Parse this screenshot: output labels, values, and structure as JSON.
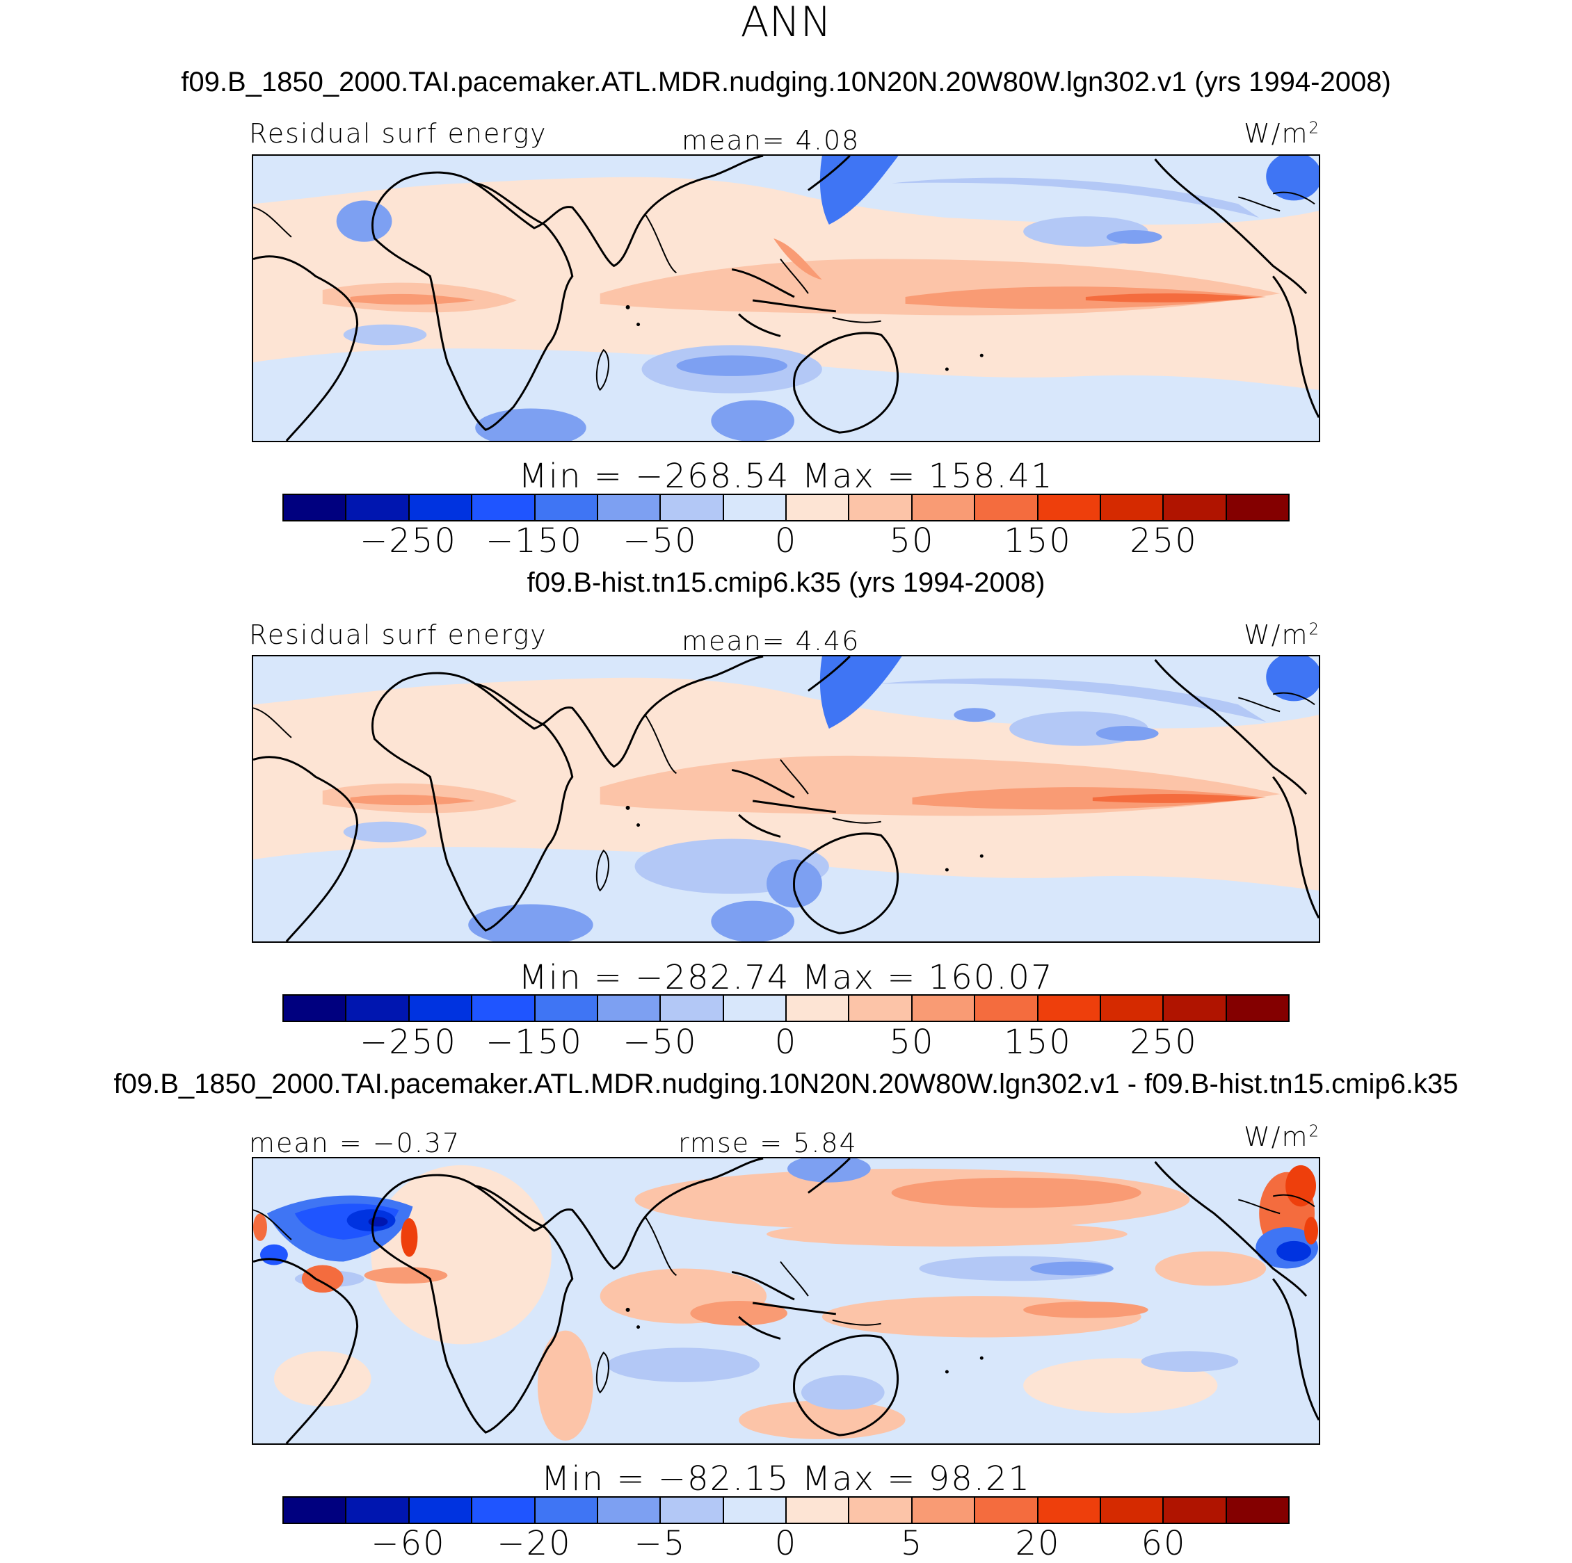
{
  "figure": {
    "title": "ANN"
  },
  "colors": {
    "palette": [
      "#00007f",
      "#0016b0",
      "#0033e0",
      "#1f55ff",
      "#3f75f4",
      "#7da0f2",
      "#b3c8f6",
      "#d8e7fb",
      "#fde4d4",
      "#fcc4a8",
      "#f99b74",
      "#f46c3e",
      "#ee3f0c",
      "#d52a00",
      "#b01400",
      "#840000"
    ],
    "continent_outline": "#000000"
  },
  "panels": [
    {
      "case_title": "f09.B_1850_2000.TAI.pacemaker.ATL.MDR.nudging.10N20N.20W80W.lgn302.v1 (yrs 1994-2008)",
      "left_label": "Residual surf energy",
      "center_label": "mean=   4.08",
      "units": "W/m",
      "units_sup": "2",
      "minmax": "Min = −268.54  Max = 158.41",
      "ticks": [
        "−250",
        "−150",
        "−50",
        "0",
        "50",
        "150",
        "250"
      ]
    },
    {
      "case_title": "f09.B-hist.tn15.cmip6.k35 (yrs 1994-2008)",
      "left_label": "Residual surf energy",
      "center_label": "mean=   4.46",
      "units": "W/m",
      "units_sup": "2",
      "minmax": "Min = −282.74  Max = 160.07",
      "ticks": [
        "−250",
        "−150",
        "−50",
        "0",
        "50",
        "150",
        "250"
      ]
    },
    {
      "case_title": "f09.B_1850_2000.TAI.pacemaker.ATL.MDR.nudging.10N20N.20W80W.lgn302.v1 - f09.B-hist.tn15.cmip6.k35",
      "left_label": "mean =  −0.37",
      "center_label": "rmse =   5.84",
      "units": "W/m",
      "units_sup": "2",
      "minmax": "Min = −82.15  Max =  98.21",
      "ticks": [
        "−60",
        "−20",
        "−5",
        "0",
        "5",
        "20",
        "60"
      ]
    }
  ]
}
